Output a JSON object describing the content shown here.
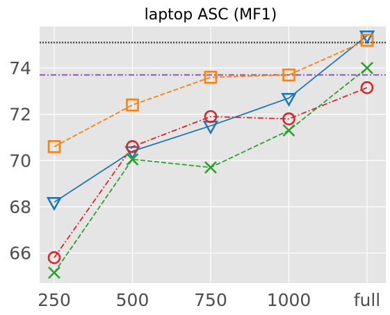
{
  "chart_data": {
    "type": "line",
    "title": "laptop ASC (MF1)",
    "xlabel": "",
    "ylabel": "",
    "categories": [
      "250",
      "500",
      "750",
      "1000",
      "full"
    ],
    "ylim": [
      64.7,
      75.8
    ],
    "yticks": [
      "66",
      "68",
      "70",
      "72",
      "74"
    ],
    "grid": true,
    "background": "#e5e5e5",
    "series": [
      {
        "color": "#1f77b4",
        "linestyle": "solid",
        "marker": "triangle-down",
        "values": [
          68.2,
          70.4,
          71.5,
          72.7,
          75.4
        ]
      },
      {
        "color": "#ff7f0e",
        "linestyle": "dashed",
        "marker": "square",
        "values": [
          70.6,
          72.4,
          73.6,
          73.7,
          75.2
        ]
      },
      {
        "color": "#d62728",
        "linestyle": "dashdot",
        "marker": "circle",
        "values": [
          65.8,
          70.6,
          71.9,
          71.8,
          73.15
        ]
      },
      {
        "color": "#2ca02c",
        "linestyle": "dashed",
        "marker": "x",
        "values": [
          65.15,
          70.05,
          69.7,
          71.3,
          74.0
        ]
      }
    ],
    "reference_lines": [
      {
        "color": "#333333",
        "linestyle": "dotted",
        "value": 75.1
      },
      {
        "color": "#9467bd",
        "linestyle": "dashdot",
        "value": 73.7
      }
    ]
  }
}
